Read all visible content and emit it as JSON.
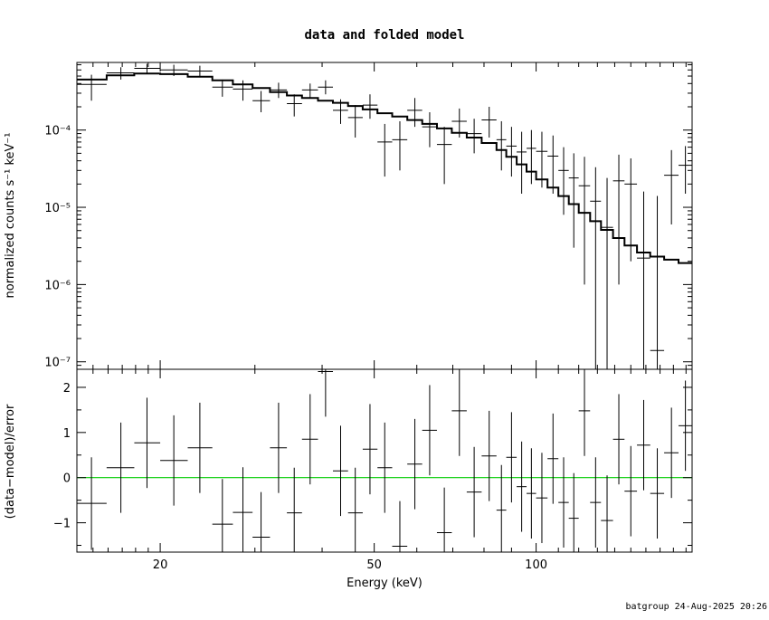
{
  "chart_data": {
    "type": "scatter",
    "title": "data and folded model",
    "xlabel": "Energy (keV)",
    "xscale": "log",
    "xlim": [
      14,
      195
    ],
    "xticks": [
      {
        "value": 20,
        "label": "20"
      },
      {
        "value": 50,
        "label": "50"
      },
      {
        "value": 100,
        "label": "100"
      }
    ],
    "footer": "batgroup 24-Aug-2025 20:26",
    "top_panel": {
      "ylabel": "normalized counts s⁻¹ keV⁻¹",
      "yscale": "log",
      "ylim": [
        8e-08,
        0.00075
      ],
      "yticks": [
        {
          "value": 0.0001,
          "label": "10⁻⁴"
        },
        {
          "value": 1e-05,
          "label": "10⁻⁵"
        },
        {
          "value": 1e-06,
          "label": "10⁻⁶"
        },
        {
          "value": 1e-07,
          "label": "10⁻⁷"
        }
      ],
      "model_steps": [
        [
          14.0,
          15.9,
          0.00045
        ],
        [
          15.9,
          17.9,
          0.00051
        ],
        [
          17.9,
          20.0,
          0.00054
        ],
        [
          20.0,
          22.5,
          0.00053
        ],
        [
          22.5,
          25.0,
          0.00049
        ],
        [
          25.0,
          27.3,
          0.00044
        ],
        [
          27.3,
          29.7,
          0.00039
        ],
        [
          29.7,
          32.0,
          0.00035
        ],
        [
          32.0,
          34.4,
          0.00031
        ],
        [
          34.4,
          36.7,
          0.00028
        ],
        [
          36.7,
          39.3,
          0.00026
        ],
        [
          39.3,
          41.9,
          0.00024
        ],
        [
          41.9,
          44.7,
          0.000225
        ],
        [
          44.7,
          47.6,
          0.000205
        ],
        [
          47.6,
          50.7,
          0.000185
        ],
        [
          50.7,
          54.0,
          0.000165
        ],
        [
          54.0,
          57.6,
          0.00015
        ],
        [
          57.6,
          61.4,
          0.000135
        ],
        [
          61.4,
          65.4,
          0.00012
        ],
        [
          65.4,
          69.7,
          0.000105
        ],
        [
          69.7,
          74.3,
          9.2e-05
        ],
        [
          74.3,
          79.2,
          8e-05
        ],
        [
          79.2,
          84.4,
          6.8e-05
        ],
        [
          84.4,
          88.0,
          5.5e-05
        ],
        [
          88.0,
          92.0,
          4.5e-05
        ],
        [
          92.0,
          96.0,
          3.6e-05
        ],
        [
          96.0,
          100.0,
          2.9e-05
        ],
        [
          100.0,
          105.0,
          2.3e-05
        ],
        [
          105.0,
          110.0,
          1.8e-05
        ],
        [
          110.0,
          115.0,
          1.4e-05
        ],
        [
          115.0,
          120.0,
          1.1e-05
        ],
        [
          120.0,
          126.0,
          8.5e-06
        ],
        [
          126.0,
          132.0,
          6.6e-06
        ],
        [
          132.0,
          139.0,
          5.1e-06
        ],
        [
          139.0,
          146.0,
          4e-06
        ],
        [
          146.0,
          154.0,
          3.2e-06
        ],
        [
          154.0,
          163.0,
          2.6e-06
        ],
        [
          163.0,
          173.0,
          2.3e-06
        ],
        [
          173.0,
          184.0,
          2.1e-06
        ],
        [
          184.0,
          195.0,
          1.9e-06
        ]
      ],
      "points": [
        {
          "x": 14.9,
          "xerr": [
            14.0,
            15.9
          ],
          "y": 0.00039,
          "ylo": 0.00024,
          "yhi": 0.00052
        },
        {
          "x": 16.9,
          "xerr": [
            15.9,
            17.9
          ],
          "y": 0.00055,
          "ylo": 0.00045,
          "yhi": 0.00065
        },
        {
          "x": 18.9,
          "xerr": [
            17.9,
            20.0
          ],
          "y": 0.00063,
          "ylo": 0.00055,
          "yhi": 0.00072
        },
        {
          "x": 21.2,
          "xerr": [
            20.0,
            22.5
          ],
          "y": 0.0006,
          "ylo": 0.0005,
          "yhi": 0.0007
        },
        {
          "x": 23.7,
          "xerr": [
            22.5,
            25.0
          ],
          "y": 0.00058,
          "ylo": 0.00048,
          "yhi": 0.00068
        },
        {
          "x": 26.1,
          "xerr": [
            25.0,
            27.3
          ],
          "y": 0.00036,
          "ylo": 0.00027,
          "yhi": 0.00045
        },
        {
          "x": 28.5,
          "xerr": [
            27.3,
            29.7
          ],
          "y": 0.00034,
          "ylo": 0.00024,
          "yhi": 0.00044
        },
        {
          "x": 30.8,
          "xerr": [
            29.7,
            32.0
          ],
          "y": 0.00024,
          "ylo": 0.00017,
          "yhi": 0.00032
        },
        {
          "x": 33.2,
          "xerr": [
            32.0,
            34.4
          ],
          "y": 0.00033,
          "ylo": 0.00026,
          "yhi": 0.00041
        },
        {
          "x": 35.5,
          "xerr": [
            34.4,
            36.7
          ],
          "y": 0.00022,
          "ylo": 0.00015,
          "yhi": 0.00029
        },
        {
          "x": 38.0,
          "xerr": [
            36.7,
            39.3
          ],
          "y": 0.00033,
          "ylo": 0.00026,
          "yhi": 0.0004
        },
        {
          "x": 40.6,
          "xerr": [
            39.3,
            41.9
          ],
          "y": 0.00036,
          "ylo": 0.00029,
          "yhi": 0.00044
        },
        {
          "x": 43.3,
          "xerr": [
            41.9,
            44.7
          ],
          "y": 0.00018,
          "ylo": 0.00012,
          "yhi": 0.00025
        },
        {
          "x": 46.1,
          "xerr": [
            44.7,
            47.6
          ],
          "y": 0.000145,
          "ylo": 8e-05,
          "yhi": 0.00021
        },
        {
          "x": 49.1,
          "xerr": [
            47.6,
            50.7
          ],
          "y": 0.00021,
          "ylo": 0.00014,
          "yhi": 0.00029
        },
        {
          "x": 52.3,
          "xerr": [
            50.7,
            54.0
          ],
          "y": 7e-05,
          "ylo": 2.5e-05,
          "yhi": 0.00012
        },
        {
          "x": 55.8,
          "xerr": [
            54.0,
            57.6
          ],
          "y": 7.5e-05,
          "ylo": 3e-05,
          "yhi": 0.00013
        },
        {
          "x": 59.5,
          "xerr": [
            57.6,
            61.4
          ],
          "y": 0.00018,
          "ylo": 0.00011,
          "yhi": 0.00026
        },
        {
          "x": 63.4,
          "xerr": [
            61.4,
            65.4
          ],
          "y": 0.00011,
          "ylo": 6e-05,
          "yhi": 0.00017
        },
        {
          "x": 67.5,
          "xerr": [
            65.4,
            69.7
          ],
          "y": 6.5e-05,
          "ylo": 2e-05,
          "yhi": 0.00011
        },
        {
          "x": 72.0,
          "xerr": [
            69.7,
            74.3
          ],
          "y": 0.00013,
          "ylo": 8e-05,
          "yhi": 0.00019
        },
        {
          "x": 76.7,
          "xerr": [
            74.3,
            79.2
          ],
          "y": 9e-05,
          "ylo": 5e-05,
          "yhi": 0.00014
        },
        {
          "x": 81.8,
          "xerr": [
            79.2,
            84.4
          ],
          "y": 0.000135,
          "ylo": 8e-05,
          "yhi": 0.0002
        },
        {
          "x": 86.2,
          "xerr": [
            84.4,
            88.0
          ],
          "y": 7.5e-05,
          "ylo": 3e-05,
          "yhi": 0.00013
        },
        {
          "x": 90.0,
          "xerr": [
            88.0,
            92.0
          ],
          "y": 6.2e-05,
          "ylo": 2.5e-05,
          "yhi": 0.00011
        },
        {
          "x": 94.0,
          "xerr": [
            92.0,
            96.0
          ],
          "y": 5.2e-05,
          "ylo": 1.5e-05,
          "yhi": 9.5e-05
        },
        {
          "x": 98.0,
          "xerr": [
            96.0,
            100.0
          ],
          "y": 5.8e-05,
          "ylo": 2e-05,
          "yhi": 0.0001
        },
        {
          "x": 102.5,
          "xerr": [
            100.0,
            105.0
          ],
          "y": 5.3e-05,
          "ylo": 1.8e-05,
          "yhi": 9.5e-05
        },
        {
          "x": 107.5,
          "xerr": [
            105.0,
            110.0
          ],
          "y": 4.6e-05,
          "ylo": 1.5e-05,
          "yhi": 8.5e-05
        },
        {
          "x": 112.5,
          "xerr": [
            110.0,
            115.0
          ],
          "y": 3e-05,
          "ylo": 8e-06,
          "yhi": 6e-05
        },
        {
          "x": 117.5,
          "xerr": [
            115.0,
            120.0
          ],
          "y": 2.4e-05,
          "ylo": 3e-06,
          "yhi": 5e-05
        },
        {
          "x": 123.0,
          "xerr": [
            120.0,
            126.0
          ],
          "y": 1.9e-05,
          "ylo": 1e-06,
          "yhi": 4.5e-05
        },
        {
          "x": 129.0,
          "xerr": [
            126.0,
            132.0
          ],
          "y": 1.2e-05,
          "ylo": null,
          "yhi": 3.3e-05
        },
        {
          "x": 135.5,
          "xerr": [
            132.0,
            139.0
          ],
          "y": 5.5e-06,
          "ylo": null,
          "yhi": 2.4e-05
        },
        {
          "x": 142.5,
          "xerr": [
            139.0,
            146.0
          ],
          "y": 2.2e-05,
          "ylo": 1e-06,
          "yhi": 4.8e-05
        },
        {
          "x": 150.0,
          "xerr": [
            146.0,
            154.0
          ],
          "y": 2e-05,
          "ylo": 2e-06,
          "yhi": 4.3e-05
        },
        {
          "x": 158.5,
          "xerr": [
            154.0,
            163.0
          ],
          "y": 2.2e-06,
          "ylo": null,
          "yhi": 1.6e-05
        },
        {
          "x": 168.0,
          "xerr": [
            163.0,
            173.0
          ],
          "y": 1.4e-07,
          "ylo": null,
          "yhi": 1.4e-05
        },
        {
          "x": 178.5,
          "xerr": [
            173.0,
            184.0
          ],
          "y": 2.6e-05,
          "ylo": 6e-06,
          "yhi": 5.5e-05
        },
        {
          "x": 189.5,
          "xerr": [
            184.0,
            195.0
          ],
          "y": 3.5e-05,
          "ylo": 1.5e-05,
          "yhi": 6.2e-05
        }
      ]
    },
    "bottom_panel": {
      "ylabel": "(data−model)/error",
      "ylim": [
        -1.65,
        2.4
      ],
      "yticks": [
        {
          "value": -1,
          "label": "−1"
        },
        {
          "value": 0,
          "label": "0"
        },
        {
          "value": 1,
          "label": "1"
        },
        {
          "value": 2,
          "label": "2"
        }
      ],
      "zero_line_color": "#00cc00",
      "residuals": [
        {
          "x": 14.9,
          "xerr": [
            14.0,
            15.9
          ],
          "y": -0.57,
          "lo": -1.6,
          "hi": 0.45
        },
        {
          "x": 16.9,
          "xerr": [
            15.9,
            17.9
          ],
          "y": 0.22,
          "lo": -0.78,
          "hi": 1.22
        },
        {
          "x": 18.9,
          "xerr": [
            17.9,
            20.0
          ],
          "y": 0.77,
          "lo": -0.23,
          "hi": 1.77
        },
        {
          "x": 21.2,
          "xerr": [
            20.0,
            22.5
          ],
          "y": 0.38,
          "lo": -0.62,
          "hi": 1.38
        },
        {
          "x": 23.7,
          "xerr": [
            22.5,
            25.0
          ],
          "y": 0.66,
          "lo": -0.34,
          "hi": 1.66
        },
        {
          "x": 26.1,
          "xerr": [
            25.0,
            27.3
          ],
          "y": -1.03,
          "lo": -1.65,
          "hi": -0.03
        },
        {
          "x": 28.5,
          "xerr": [
            27.3,
            29.7
          ],
          "y": -0.77,
          "lo": -1.65,
          "hi": 0.23
        },
        {
          "x": 30.8,
          "xerr": [
            29.7,
            32.0
          ],
          "y": -1.32,
          "lo": -1.65,
          "hi": -0.32
        },
        {
          "x": 33.2,
          "xerr": [
            32.0,
            34.4
          ],
          "y": 0.66,
          "lo": -0.34,
          "hi": 1.66
        },
        {
          "x": 35.5,
          "xerr": [
            34.4,
            36.7
          ],
          "y": -0.78,
          "lo": -1.65,
          "hi": 0.22
        },
        {
          "x": 38.0,
          "xerr": [
            36.7,
            39.3
          ],
          "y": 0.85,
          "lo": -0.15,
          "hi": 1.85
        },
        {
          "x": 40.6,
          "xerr": [
            39.3,
            41.9
          ],
          "y": 2.35,
          "lo": 1.35,
          "hi": 2.4
        },
        {
          "x": 43.3,
          "xerr": [
            41.9,
            44.7
          ],
          "y": 0.15,
          "lo": -0.85,
          "hi": 1.15
        },
        {
          "x": 46.1,
          "xerr": [
            44.7,
            47.6
          ],
          "y": -0.78,
          "lo": -1.65,
          "hi": 0.22
        },
        {
          "x": 49.1,
          "xerr": [
            47.6,
            50.7
          ],
          "y": 0.63,
          "lo": -0.37,
          "hi": 1.63
        },
        {
          "x": 52.3,
          "xerr": [
            50.7,
            54.0
          ],
          "y": 0.22,
          "lo": -0.78,
          "hi": 1.22
        },
        {
          "x": 55.8,
          "xerr": [
            54.0,
            57.6
          ],
          "y": -1.52,
          "lo": -1.65,
          "hi": -0.52
        },
        {
          "x": 59.5,
          "xerr": [
            57.6,
            61.4
          ],
          "y": 0.3,
          "lo": -0.7,
          "hi": 1.3
        },
        {
          "x": 63.4,
          "xerr": [
            61.4,
            65.4
          ],
          "y": 1.05,
          "lo": 0.05,
          "hi": 2.05
        },
        {
          "x": 67.5,
          "xerr": [
            65.4,
            69.7
          ],
          "y": -1.22,
          "lo": -1.65,
          "hi": -0.22
        },
        {
          "x": 72.0,
          "xerr": [
            69.7,
            74.3
          ],
          "y": 1.48,
          "lo": 0.48,
          "hi": 2.4
        },
        {
          "x": 76.7,
          "xerr": [
            74.3,
            79.2
          ],
          "y": -0.32,
          "lo": -1.32,
          "hi": 0.68
        },
        {
          "x": 81.8,
          "xerr": [
            79.2,
            84.4
          ],
          "y": 0.48,
          "lo": -0.52,
          "hi": 1.48
        },
        {
          "x": 86.2,
          "xerr": [
            84.4,
            88.0
          ],
          "y": -0.72,
          "lo": -1.65,
          "hi": 0.28
        },
        {
          "x": 90.0,
          "xerr": [
            88.0,
            92.0
          ],
          "y": 0.45,
          "lo": -0.55,
          "hi": 1.45
        },
        {
          "x": 94.0,
          "xerr": [
            92.0,
            96.0
          ],
          "y": -0.2,
          "lo": -1.2,
          "hi": 0.8
        },
        {
          "x": 98.0,
          "xerr": [
            96.0,
            100.0
          ],
          "y": -0.35,
          "lo": -1.35,
          "hi": 0.65
        },
        {
          "x": 102.5,
          "xerr": [
            100.0,
            105.0
          ],
          "y": -0.45,
          "lo": -1.45,
          "hi": 0.55
        },
        {
          "x": 107.5,
          "xerr": [
            105.0,
            110.0
          ],
          "y": 0.42,
          "lo": -0.58,
          "hi": 1.42
        },
        {
          "x": 112.5,
          "xerr": [
            110.0,
            115.0
          ],
          "y": -0.55,
          "lo": -1.55,
          "hi": 0.45
        },
        {
          "x": 117.5,
          "xerr": [
            115.0,
            120.0
          ],
          "y": -0.9,
          "lo": -1.65,
          "hi": 0.1
        },
        {
          "x": 123.0,
          "xerr": [
            120.0,
            126.0
          ],
          "y": 1.48,
          "lo": 0.48,
          "hi": 2.4
        },
        {
          "x": 129.0,
          "xerr": [
            126.0,
            132.0
          ],
          "y": -0.55,
          "lo": -1.55,
          "hi": 0.45
        },
        {
          "x": 135.5,
          "xerr": [
            132.0,
            139.0
          ],
          "y": -0.95,
          "lo": -1.65,
          "hi": 0.05
        },
        {
          "x": 142.5,
          "xerr": [
            139.0,
            146.0
          ],
          "y": 0.85,
          "lo": -0.15,
          "hi": 1.85
        },
        {
          "x": 150.0,
          "xerr": [
            146.0,
            154.0
          ],
          "y": -0.3,
          "lo": -1.3,
          "hi": 0.7
        },
        {
          "x": 158.5,
          "xerr": [
            154.0,
            163.0
          ],
          "y": 0.72,
          "lo": -0.28,
          "hi": 1.72
        },
        {
          "x": 168.0,
          "xerr": [
            163.0,
            173.0
          ],
          "y": -0.35,
          "lo": -1.35,
          "hi": 0.65
        },
        {
          "x": 178.5,
          "xerr": [
            173.0,
            184.0
          ],
          "y": 0.55,
          "lo": -0.45,
          "hi": 1.55
        },
        {
          "x": 189.5,
          "xerr": [
            184.0,
            195.0
          ],
          "y": 1.15,
          "lo": 0.15,
          "hi": 2.15
        }
      ]
    }
  }
}
